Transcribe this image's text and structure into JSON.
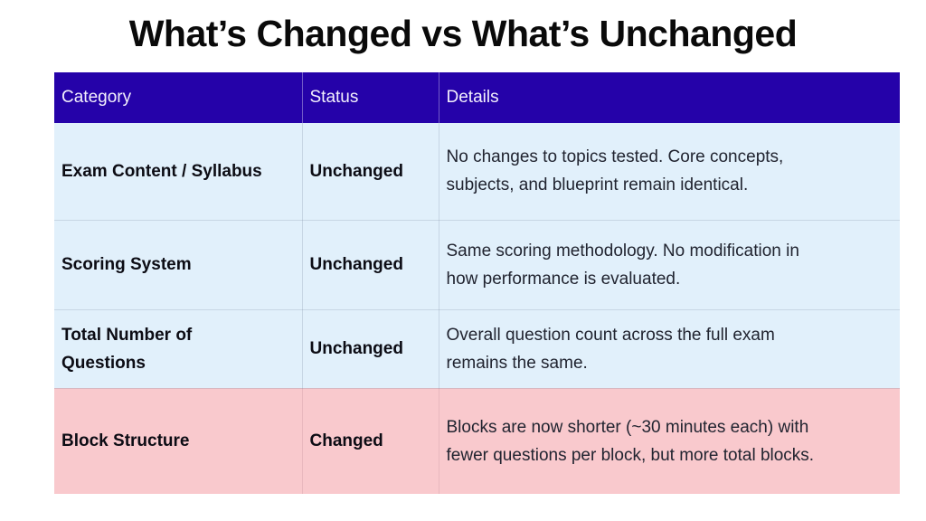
{
  "slide": {
    "title": "What’s Changed vs What’s Unchanged"
  },
  "colors": {
    "header_bg": "#2502a9",
    "header_text": "#f3f0fd",
    "row_bg": "#e1f0fb",
    "highlight_row_bg": "#f9c9cd",
    "title_text": "#0a0a0a",
    "body_text": "#212430"
  },
  "table": {
    "headers": [
      "Category",
      "Status",
      "Details"
    ],
    "rows": [
      {
        "category": "Exam Content / Syllabus",
        "status": "Unchanged",
        "details": "No changes to topics tested. Core concepts,\nsubjects, and blueprint remain identical.",
        "highlight": false
      },
      {
        "category": "Scoring System",
        "status": "Unchanged",
        "details": "Same scoring methodology. No modification in\nhow performance is evaluated.",
        "highlight": false
      },
      {
        "category": "Total Number of\nQuestions",
        "status": "Unchanged",
        "details": "Overall question count across the full exam\nremains the same.",
        "highlight": false
      },
      {
        "category": "Block Structure",
        "status": "Changed",
        "details": "Blocks are now shorter (~30 minutes each) with\nfewer questions per block, but more total blocks.",
        "highlight": true
      }
    ]
  }
}
